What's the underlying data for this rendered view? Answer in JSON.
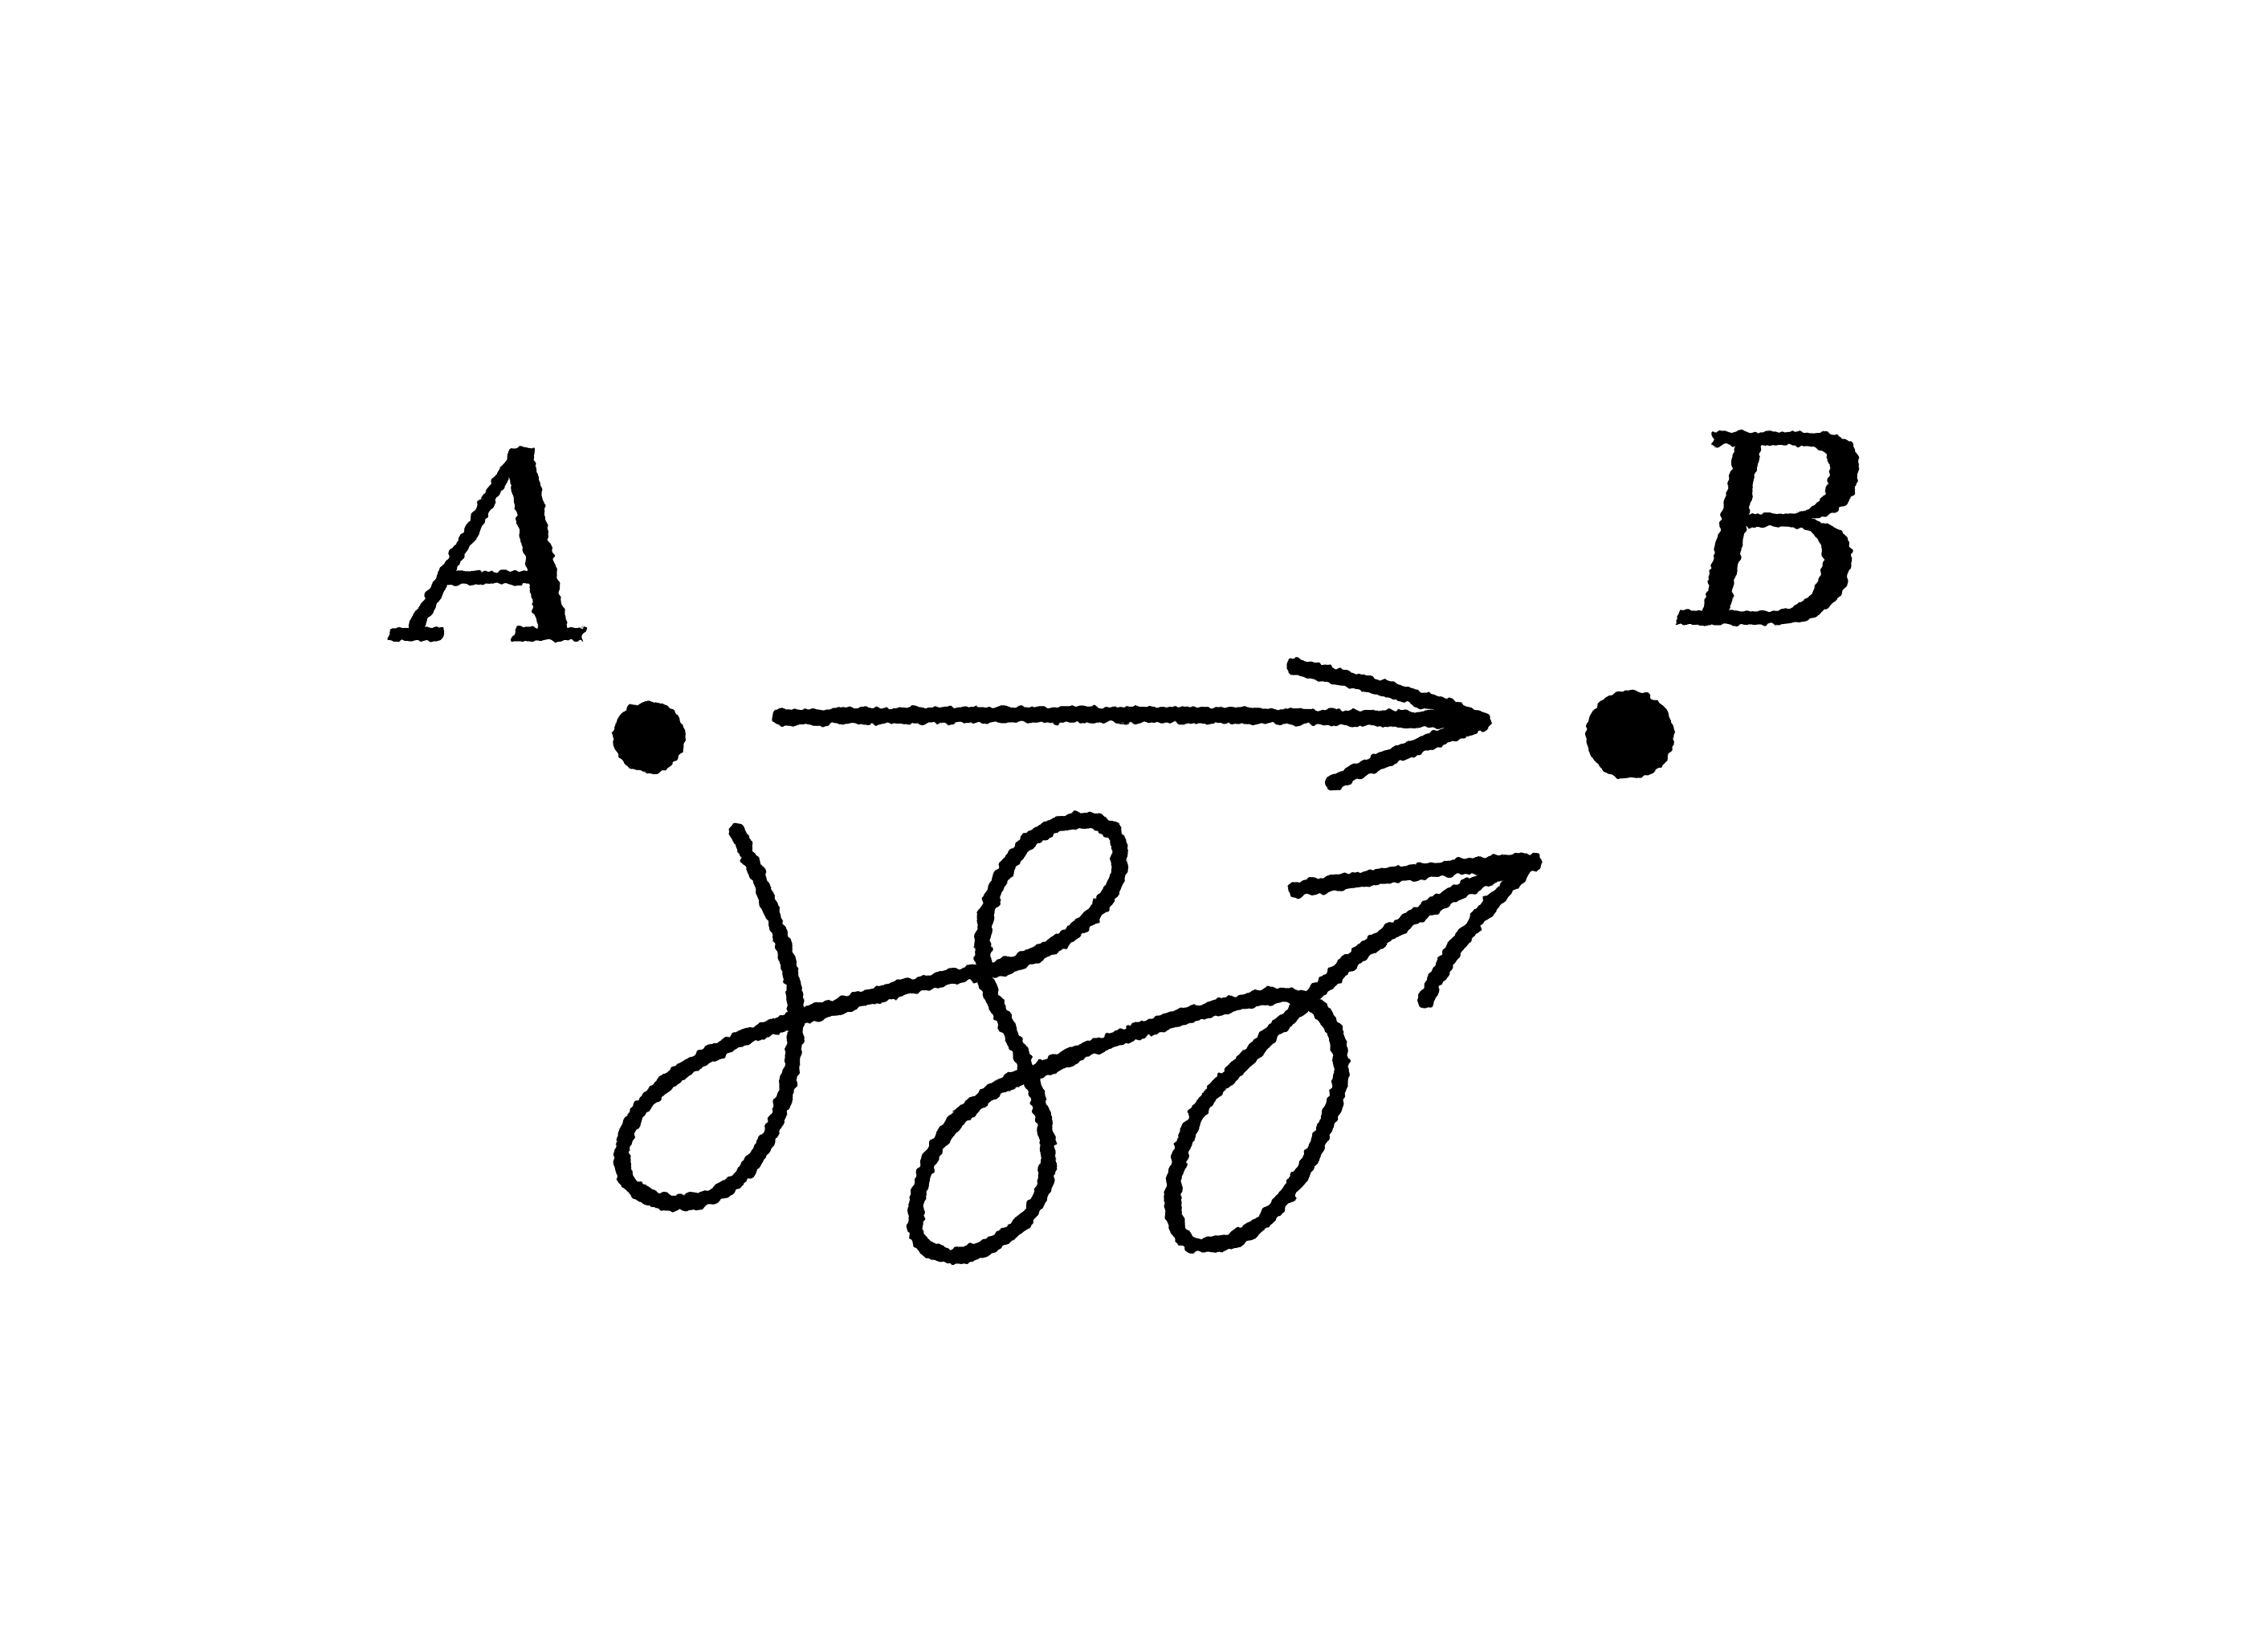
{
  "diagram": {
    "start_point": {
      "label": "A"
    },
    "end_point": {
      "label": "B"
    },
    "paths": [
      {
        "kind": "straight-arrow"
      },
      {
        "kind": "looping-arrow",
        "loops": 3
      }
    ]
  },
  "colors": {
    "ink": "#000000",
    "background": "#ffffff"
  }
}
